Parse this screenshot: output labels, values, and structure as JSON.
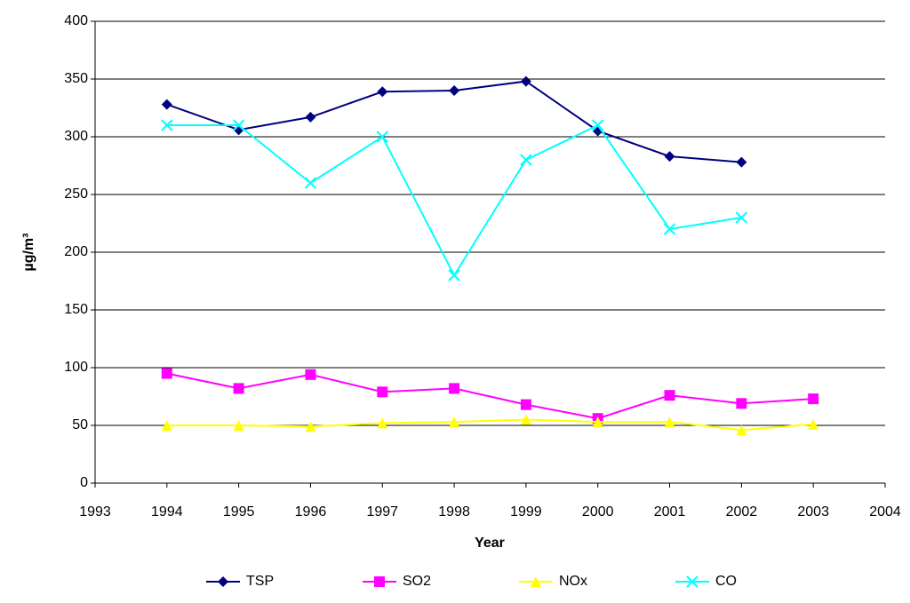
{
  "chart_data": {
    "type": "line",
    "x_label": "Year",
    "y_label": "µg/m³",
    "x": [
      1994,
      1995,
      1996,
      1997,
      1998,
      1999,
      2000,
      2001,
      2002,
      2003
    ],
    "series": [
      {
        "name": "TSP",
        "color": "#000080",
        "marker": "diamond",
        "values": [
          328,
          306,
          317,
          339,
          340,
          348,
          305,
          283,
          278,
          null
        ]
      },
      {
        "name": "SO2",
        "color": "#ff00ff",
        "marker": "square",
        "values": [
          95,
          82,
          94,
          79,
          82,
          68,
          56,
          76,
          69,
          73
        ]
      },
      {
        "name": "NOx",
        "color": "#ffff00",
        "marker": "triangle",
        "values": [
          50,
          50,
          49,
          52,
          53,
          55,
          53,
          53,
          46,
          51
        ]
      },
      {
        "name": "CO",
        "color": "#00ffff",
        "marker": "x",
        "values": [
          310,
          310,
          260,
          300,
          180,
          280,
          310,
          220,
          230,
          null
        ]
      }
    ],
    "xlim": [
      1993,
      2004
    ],
    "xticks": [
      1993,
      1994,
      1995,
      1996,
      1997,
      1998,
      1999,
      2000,
      2001,
      2002,
      2003,
      2004
    ],
    "ylim": [
      0,
      400
    ],
    "yticks": [
      0,
      50,
      100,
      150,
      200,
      250,
      300,
      350,
      400
    ],
    "grid": true,
    "legend": "bottom"
  }
}
